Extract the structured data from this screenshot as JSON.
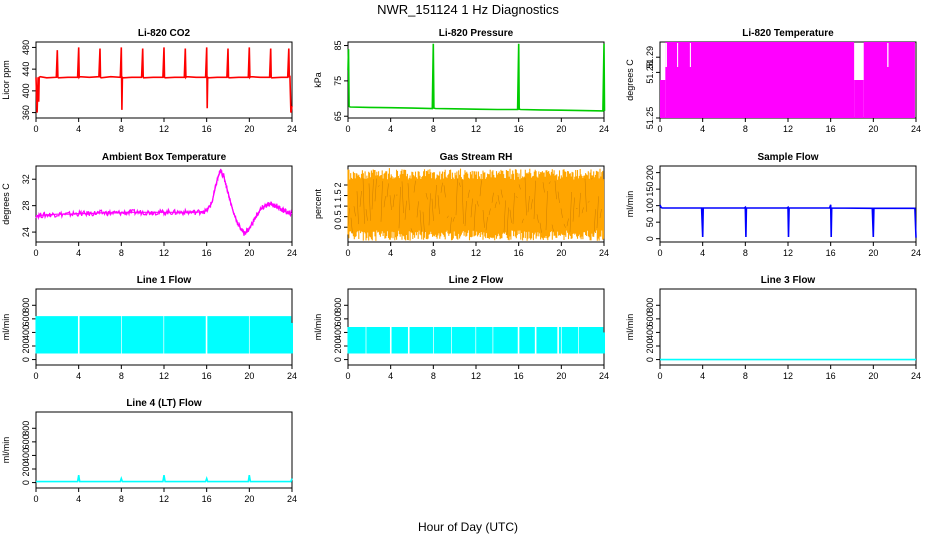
{
  "figure": {
    "title": "NWR_151124  1 Hz Diagnostics",
    "xlabel": "Hour of Day (UTC)"
  },
  "chart_data": [
    {
      "type": "line",
      "title": "Li-820 CO2",
      "ylabel": "Licor ppm",
      "color": "#ff0000",
      "xlim": [
        0,
        24
      ],
      "ylim": [
        350,
        490
      ],
      "xticks": [
        0,
        4,
        8,
        12,
        16,
        20,
        24
      ],
      "yticks": [
        360,
        400,
        440,
        480
      ],
      "series": [
        {
          "x": [
            0.0,
            0.1,
            0.2,
            0.25,
            0.3,
            0.4,
            1.0,
            1.9,
            2.0,
            2.05,
            2.1,
            3.0,
            3.9,
            4.0,
            4.05,
            4.1,
            5.0,
            5.9,
            6.0,
            6.05,
            6.1,
            7.0,
            7.9,
            8.0,
            8.05,
            8.1,
            8.15,
            9.0,
            9.9,
            10.0,
            10.05,
            10.1,
            11.0,
            11.9,
            12.0,
            12.05,
            12.1,
            13.0,
            13.9,
            14.0,
            14.05,
            14.1,
            15.0,
            15.9,
            16.0,
            16.05,
            16.1,
            16.15,
            17.0,
            17.9,
            18.0,
            18.05,
            18.1,
            19.0,
            19.9,
            20.0,
            20.05,
            20.1,
            21.0,
            21.9,
            22.0,
            22.05,
            22.1,
            23.0,
            23.6,
            23.7,
            23.75,
            23.8,
            23.9,
            24.0
          ],
          "y": [
            425,
            360,
            425,
            380,
            425,
            426,
            424,
            425,
            475,
            425,
            424,
            425,
            425,
            480,
            425,
            426,
            425,
            426,
            478,
            425,
            424,
            426,
            425,
            480,
            365,
            425,
            424,
            425,
            425,
            478,
            426,
            424,
            425,
            425,
            480,
            425,
            424,
            425,
            425,
            478,
            425,
            426,
            425,
            425,
            480,
            368,
            425,
            424,
            425,
            425,
            478,
            425,
            424,
            425,
            425,
            480,
            425,
            426,
            425,
            425,
            478,
            425,
            424,
            425,
            425,
            478,
            425,
            428,
            360,
            372
          ]
        }
      ]
    },
    {
      "type": "line",
      "title": "Li-820 Pressure",
      "ylabel": "kPa",
      "color": "#00cc00",
      "xlim": [
        0,
        24
      ],
      "ylim": [
        64.5,
        86
      ],
      "xticks": [
        0,
        4,
        8,
        12,
        16,
        20,
        24
      ],
      "yticks": [
        65,
        75,
        85
      ],
      "series": [
        {
          "x": [
            0.0,
            0.05,
            0.1,
            0.2,
            2,
            4,
            6,
            7.9,
            8.0,
            8.05,
            8.2,
            10,
            12,
            14,
            15.9,
            16.0,
            16.05,
            16.2,
            18,
            20,
            22,
            23.9,
            24.0,
            24.05
          ],
          "y": [
            78,
            84,
            67.8,
            67.6,
            67.5,
            67.4,
            67.3,
            67.2,
            85.5,
            67.3,
            67.2,
            67.1,
            67.0,
            66.9,
            66.9,
            85.5,
            67.0,
            66.9,
            66.8,
            66.7,
            66.6,
            66.5,
            85.5,
            66.5
          ]
        }
      ]
    },
    {
      "type": "area",
      "title": "Li-820 Temperature",
      "ylabel": "degrees C",
      "color": "#ff00ff",
      "xlim": [
        0,
        24
      ],
      "ylim": [
        51.25,
        51.3
      ],
      "xticks": [
        0,
        4,
        8,
        12,
        16,
        20,
        24
      ],
      "yticks": [
        51.25,
        51.28,
        51.29
      ],
      "segments": [
        {
          "x0": 0.0,
          "x1": 0.5,
          "low": 51.25,
          "high": 51.275
        },
        {
          "x0": 0.5,
          "x1": 18.2,
          "low": 51.25,
          "high": 51.3
        },
        {
          "x0": 18.2,
          "x1": 19.1,
          "low": 51.25,
          "high": 51.275
        },
        {
          "x0": 19.1,
          "x1": 21.0,
          "low": 51.25,
          "high": 51.3
        },
        {
          "x0": 21.0,
          "x1": 23.9,
          "low": 51.25,
          "high": 51.3
        }
      ]
    },
    {
      "type": "line",
      "title": "Ambient Box Temperature",
      "ylabel": "degrees C",
      "color": "#ff00ff",
      "xlim": [
        0,
        24
      ],
      "ylim": [
        22.5,
        34
      ],
      "xticks": [
        0,
        4,
        8,
        12,
        16,
        20,
        24
      ],
      "yticks": [
        24,
        28,
        32
      ],
      "series": [
        {
          "x": [
            0,
            1,
            2,
            3,
            4,
            5,
            6,
            7,
            8,
            9,
            10,
            11,
            12,
            13,
            14,
            15,
            16,
            16.5,
            17,
            17.3,
            17.6,
            18,
            18.5,
            19,
            19.5,
            20,
            20.5,
            21,
            21.5,
            22,
            22.5,
            23,
            23.5,
            24
          ],
          "y": [
            26.5,
            26.6,
            26.7,
            26.7,
            26.8,
            26.8,
            26.9,
            26.9,
            26.9,
            27.0,
            27.0,
            27.0,
            27.0,
            27.0,
            27.0,
            27.0,
            27.2,
            28.5,
            32.0,
            33.3,
            32.5,
            30.0,
            27.0,
            25.0,
            23.8,
            24.5,
            26.0,
            27.3,
            28.0,
            28.2,
            28.0,
            27.5,
            27.0,
            26.8
          ]
        }
      ],
      "noise_band": 0.4
    },
    {
      "type": "area",
      "title": "Gas Stream RH",
      "ylabel": "percent",
      "color": "#ffa500",
      "xlim": [
        0,
        24
      ],
      "ylim": [
        -0.7,
        2.9
      ],
      "xticks": [
        0,
        4,
        8,
        12,
        16,
        20,
        24
      ],
      "yticks": [
        0,
        0.5,
        1,
        1.5,
        2
      ],
      "band": {
        "low": -0.4,
        "high": 2.4,
        "peak_low": -0.6,
        "peak_high": 2.8
      }
    },
    {
      "type": "line",
      "title": "Sample Flow",
      "ylabel": "ml/min",
      "color": "#0000ff",
      "xlim": [
        0,
        24
      ],
      "ylim": [
        -10,
        220
      ],
      "xticks": [
        0,
        4,
        8,
        12,
        16,
        20,
        24
      ],
      "yticks": [
        0,
        50,
        100,
        150,
        200
      ],
      "series": [
        {
          "x": [
            0,
            0.1,
            0.2,
            3.9,
            4.0,
            4.05,
            4.1,
            7.9,
            8.0,
            8.05,
            8.1,
            11.9,
            12.0,
            12.05,
            12.1,
            15.9,
            16.0,
            16.05,
            16.1,
            19.9,
            20.0,
            20.05,
            20.1,
            23.9,
            24.0
          ],
          "y": [
            102,
            95,
            93,
            93,
            5,
            93,
            93,
            93,
            95,
            5,
            93,
            93,
            95,
            5,
            93,
            93,
            103,
            5,
            93,
            92,
            5,
            92,
            92,
            92,
            3
          ]
        }
      ]
    },
    {
      "type": "area",
      "title": "Line 1 Flow",
      "ylabel": "ml/min",
      "color": "#00ffff",
      "xlim": [
        0,
        24
      ],
      "ylim": [
        -80,
        1040
      ],
      "xticks": [
        0,
        4,
        8,
        12,
        16,
        20,
        24
      ],
      "yticks": [
        0,
        200,
        400,
        600,
        800
      ],
      "band": {
        "low": 90,
        "high": 640
      },
      "gaps": [
        4.0,
        8.0,
        12.0,
        16.0,
        20.0
      ],
      "end": {
        "x": 24.0,
        "high": 540
      }
    },
    {
      "type": "area",
      "title": "Line 2 Flow",
      "ylabel": "ml/min",
      "color": "#00ffff",
      "xlim": [
        0,
        24
      ],
      "ylim": [
        -80,
        1040
      ],
      "xticks": [
        0,
        4,
        8,
        12,
        16,
        20,
        24
      ],
      "yticks": [
        0,
        200,
        400,
        600,
        800
      ],
      "band": {
        "low": 90,
        "high": 480
      },
      "gaps": [
        1.7,
        4.0,
        5.7,
        8.0,
        9.7,
        12.0,
        13.6,
        16.0,
        17.6,
        19.7,
        20.0,
        21.6
      ],
      "end": {
        "x": 24.0,
        "high": 400
      }
    },
    {
      "type": "line",
      "title": "Line 3 Flow",
      "ylabel": "ml/min",
      "color": "#00ffff",
      "xlim": [
        0,
        24
      ],
      "ylim": [
        -80,
        1040
      ],
      "xticks": [
        0,
        4,
        8,
        12,
        16,
        20,
        24
      ],
      "yticks": [
        0,
        200,
        400,
        600,
        800
      ],
      "series": [
        {
          "x": [
            0,
            24
          ],
          "y": [
            0,
            0
          ]
        }
      ]
    },
    {
      "type": "line",
      "title": "Line 4 (LT) Flow",
      "ylabel": "ml/min",
      "color": "#00ffff",
      "xlim": [
        0,
        24
      ],
      "ylim": [
        -80,
        1040
      ],
      "xticks": [
        0,
        4,
        8,
        12,
        16,
        20,
        24
      ],
      "yticks": [
        0,
        200,
        400,
        600,
        800
      ],
      "series": [
        {
          "x": [
            0,
            3.9,
            4.0,
            4.1,
            7.9,
            8.0,
            8.1,
            11.9,
            12.0,
            12.1,
            15.9,
            16.0,
            16.1,
            19.9,
            20.0,
            20.1,
            23.9,
            24.0
          ],
          "y": [
            15,
            15,
            110,
            15,
            15,
            60,
            15,
            15,
            110,
            15,
            15,
            60,
            15,
            15,
            110,
            15,
            15,
            60
          ]
        }
      ]
    }
  ]
}
